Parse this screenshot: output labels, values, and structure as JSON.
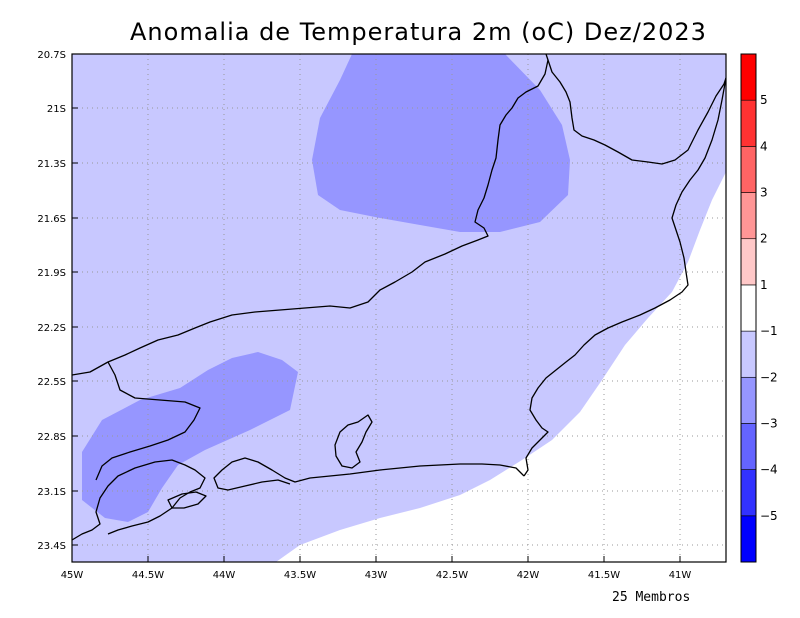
{
  "title": "Anomalia de Temperatura 2m (oC) Dez/2023",
  "footnote": "25 Membros",
  "chart_data": {
    "type": "heatmap",
    "title": "Anomalia de Temperatura 2m (oC) Dez/2023",
    "x_ticks": [
      "45W",
      "44.5W",
      "44W",
      "43.5W",
      "43W",
      "42.5W",
      "42W",
      "41.5W",
      "41W"
    ],
    "y_ticks": [
      "20.7S",
      "21S",
      "21.3S",
      "21.6S",
      "21.9S",
      "22.2S",
      "22.5S",
      "22.8S",
      "23.1S",
      "23.4S"
    ],
    "xlim": [
      -45,
      -40.7
    ],
    "ylim": [
      -23.5,
      -20.7
    ],
    "grid": true,
    "colorbar": {
      "levels": [
        -5,
        -4,
        -3,
        -2,
        -1,
        1,
        2,
        3,
        4,
        5
      ],
      "labels": [
        "−5",
        "−4",
        "−3",
        "−2",
        "−1",
        "1",
        "2",
        "3",
        "4",
        "5"
      ],
      "colors": [
        "#0000ff",
        "#3232ff",
        "#6464ff",
        "#9696ff",
        "#c8c8ff",
        "#ffffff",
        "#ffc8c8",
        "#ff9696",
        "#ff6464",
        "#ff3232",
        "#ff0000"
      ]
    },
    "fill_colors": {
      "range_minus2_minus1": "#c8c8ff",
      "range_minus3_minus2": "#9696ff",
      "range_minus1_1": "#ffffff"
    }
  }
}
